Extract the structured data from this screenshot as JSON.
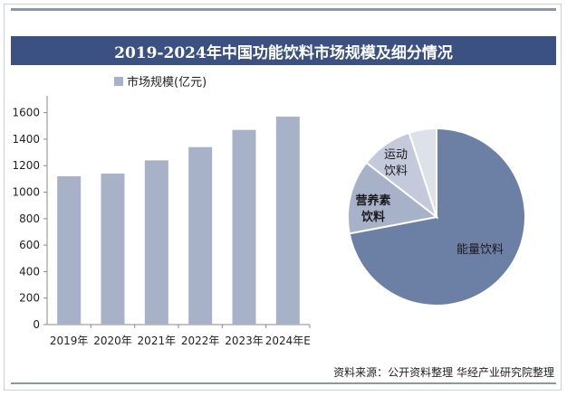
{
  "title": "2019-2024年中国功能饮料市场规模及细分情况",
  "source": "资料来源：公开资料整理 华经产业研究院整理",
  "colors": {
    "bar": "#a7b1c8",
    "title_bg": "#3b5182",
    "pie_energy": "#6c7fa5",
    "pie_nutrition": "#a7b1c8",
    "pie_sports": "#c4cadb",
    "pie_other": "#dde1ea"
  },
  "chart_data": [
    {
      "type": "bar",
      "legend": "市场规模(亿元)",
      "categories": [
        "2019年",
        "2020年",
        "2021年",
        "2022年",
        "2023年",
        "2024年E"
      ],
      "values": [
        1120,
        1140,
        1240,
        1340,
        1470,
        1570
      ],
      "yticks": [
        0,
        200,
        400,
        600,
        800,
        1000,
        1200,
        1400,
        1600
      ],
      "ylim": [
        0,
        1700
      ]
    },
    {
      "type": "pie",
      "labels": [
        "能量饮料",
        "营养素饮料",
        "运动饮料",
        ""
      ],
      "values": [
        72.0,
        13.5,
        9.5,
        5.0
      ]
    }
  ]
}
